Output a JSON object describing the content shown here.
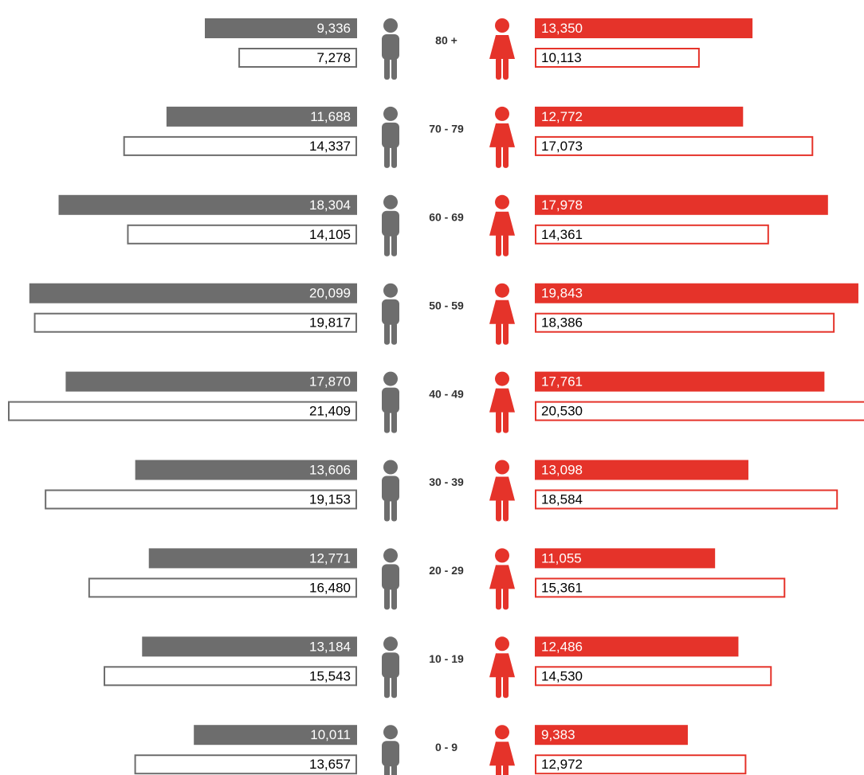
{
  "chart_data": {
    "type": "pyramid",
    "categories": [
      "80 +",
      "70 - 79",
      "60 - 69",
      "50 - 59",
      "40 - 49",
      "30 - 39",
      "20 - 29",
      "10 - 19",
      "0 - 9"
    ],
    "series": [
      {
        "side": "left",
        "style": "filled",
        "color": "#6d6d6d",
        "values": [
          9336,
          11688,
          18304,
          20099,
          17870,
          13606,
          12771,
          13184,
          10011
        ],
        "value_labels": [
          "9,336",
          "11,688",
          "18,304",
          "20,099",
          "17,870",
          "13,606",
          "12,771",
          "13,184",
          "10,011"
        ]
      },
      {
        "side": "left",
        "style": "outlined",
        "color": "#6d6d6d",
        "values": [
          7278,
          14337,
          14105,
          19817,
          21409,
          19153,
          16480,
          15543,
          13657
        ],
        "value_labels": [
          "7,278",
          "14,337",
          "14,105",
          "19,817",
          "21,409",
          "19,153",
          "16,480",
          "15,543",
          "13,657"
        ]
      },
      {
        "side": "right",
        "style": "filled",
        "color": "#e5332a",
        "values": [
          13350,
          12772,
          17978,
          19843,
          17761,
          13098,
          11055,
          12486,
          9383
        ],
        "value_labels": [
          "13,350",
          "12,772",
          "17,978",
          "19,843",
          "17,761",
          "13,098",
          "11,055",
          "12,486",
          "9,383"
        ]
      },
      {
        "side": "right",
        "style": "outlined",
        "color": "#e5332a",
        "values": [
          10113,
          17073,
          14361,
          18386,
          20530,
          18584,
          15361,
          14530,
          12972
        ],
        "value_labels": [
          "10,113",
          "17,073",
          "14,361",
          "18,386",
          "20,530",
          "18,584",
          "15,361",
          "14,530",
          "12,972"
        ]
      }
    ]
  }
}
